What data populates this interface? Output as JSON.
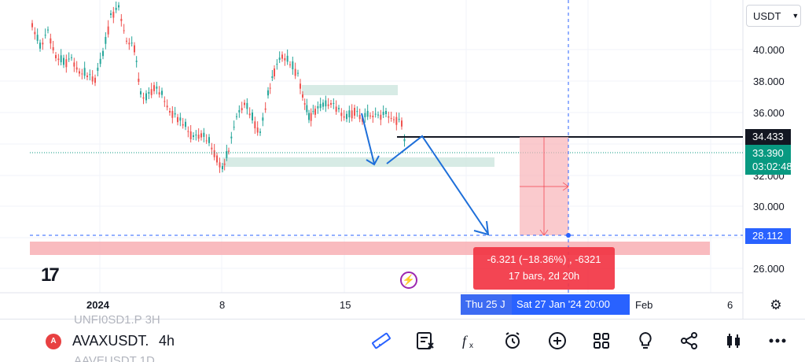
{
  "header": {
    "currency": "USDT"
  },
  "price_axis": {
    "ticks": [
      "40.000",
      "38.000",
      "36.000",
      "32.000",
      "30.000",
      "26.000"
    ],
    "tags": {
      "line_price": "34.433",
      "last_price": "33.390",
      "countdown": "03:02:48",
      "crosshair_price": "28.112"
    }
  },
  "time_axis": {
    "ticks": [
      "2024",
      "8",
      "15",
      "Feb",
      "6"
    ],
    "crosshair_date_left": "Thu 25 J",
    "crosshair_date": "Sat 27 Jan '24   20:00"
  },
  "measure": {
    "line1": "-6.321 (−18.36%) , -6321",
    "line2": "17 bars, 2d 20h"
  },
  "logo": {
    "text": "17"
  },
  "bottom_bar": {
    "ghost_above": "UNFI0SD1.P 3H",
    "ghost_below": "AAVEUSDT 1D",
    "symbol_icon": "A",
    "symbol": "AVAXUSDT.",
    "interval": "4h"
  },
  "toolbar": {
    "icons": [
      "ruler-icon",
      "indicator-list-icon",
      "function-icon",
      "alarm-add-icon",
      "plus-circle-icon",
      "layout-grid-icon",
      "lightbulb-icon",
      "share-icon",
      "candles-icon",
      "more-icon"
    ]
  },
  "colors": {
    "bull": "#26a69a",
    "bear": "#ef5350",
    "drawing_blue": "#1e6fd9",
    "measure_red": "#f23645",
    "crosshair": "#2962ff",
    "zone_green": "#cde6df",
    "zone_red": "#f8b4b8"
  }
}
